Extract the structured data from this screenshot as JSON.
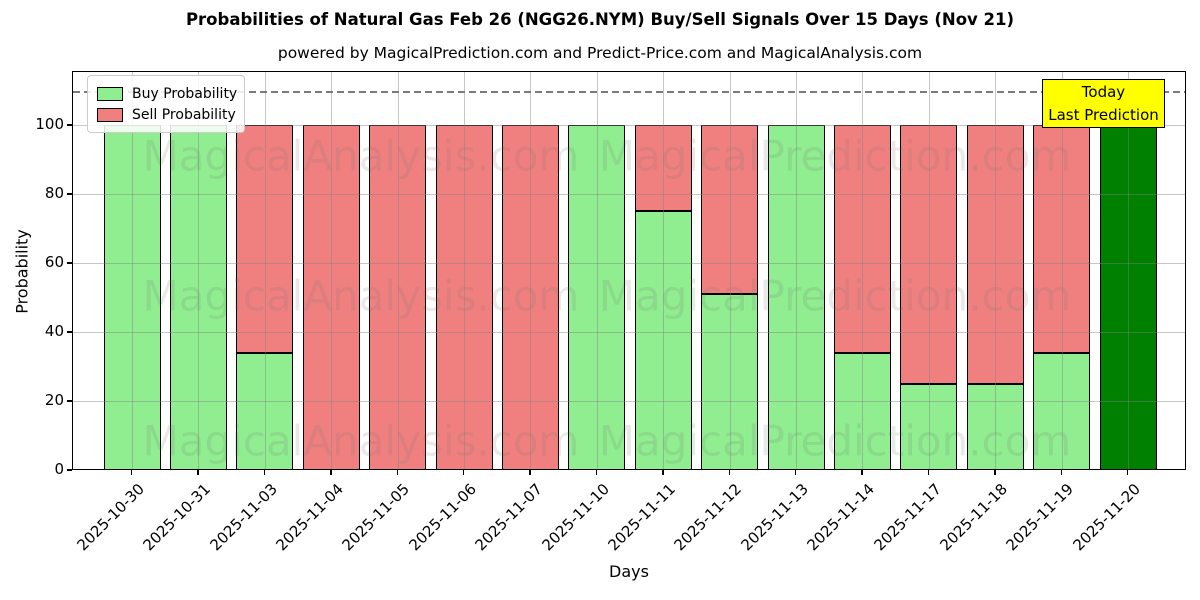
{
  "figure": {
    "title": "Probabilities of Natural Gas Feb 26 (NGG26.NYM) Buy/Sell Signals Over 15 Days (Nov 21)",
    "subtitle": "powered by MagicalPrediction.com and Predict-Price.com and MagicalAnalysis.com"
  },
  "chart_data": {
    "type": "bar",
    "stacked": true,
    "title": "Probabilities of Natural Gas Feb 26 (NGG26.NYM) Buy/Sell Signals Over 15 Days (Nov 21)",
    "subtitle": "powered by MagicalPrediction.com and Predict-Price.com and MagicalAnalysis.com",
    "xlabel": "Days",
    "ylabel": "Probability",
    "categories": [
      "2025-10-30",
      "2025-10-31",
      "2025-11-03",
      "2025-11-04",
      "2025-11-05",
      "2025-11-06",
      "2025-11-07",
      "2025-11-10",
      "2025-11-11",
      "2025-11-12",
      "2025-11-13",
      "2025-11-14",
      "2025-11-17",
      "2025-11-18",
      "2025-11-19",
      "2025-11-20"
    ],
    "series": [
      {
        "name": "Buy Probability",
        "color": "#90EE90",
        "values": [
          100,
          100,
          34,
          0,
          0,
          0,
          0,
          100,
          75,
          51,
          100,
          34,
          25,
          25,
          34,
          100
        ]
      },
      {
        "name": "Sell Probability",
        "color": "#F08080",
        "values": [
          0,
          0,
          66,
          100,
          100,
          100,
          100,
          0,
          25,
          49,
          0,
          66,
          75,
          75,
          66,
          0
        ]
      }
    ],
    "today_bar": {
      "index": 15,
      "color": "#008000",
      "label": "Today / Last Prediction"
    },
    "ylim": [
      0,
      115
    ],
    "yticks": [
      0,
      20,
      40,
      60,
      80,
      100
    ],
    "grid": true,
    "threshold_line": {
      "value": 110,
      "style": "dashed",
      "color": "#7a7a7a"
    },
    "legend": {
      "position": "upper-left",
      "entries": [
        "Buy Probability",
        "Sell Probability"
      ]
    },
    "annotation_box": {
      "line1": "Today",
      "line2": "Last Prediction",
      "bg_color": "#FFFF00"
    },
    "watermarks": {
      "left": "MagicalAnalysis.com",
      "right": "MagicalPrediction.com"
    }
  }
}
